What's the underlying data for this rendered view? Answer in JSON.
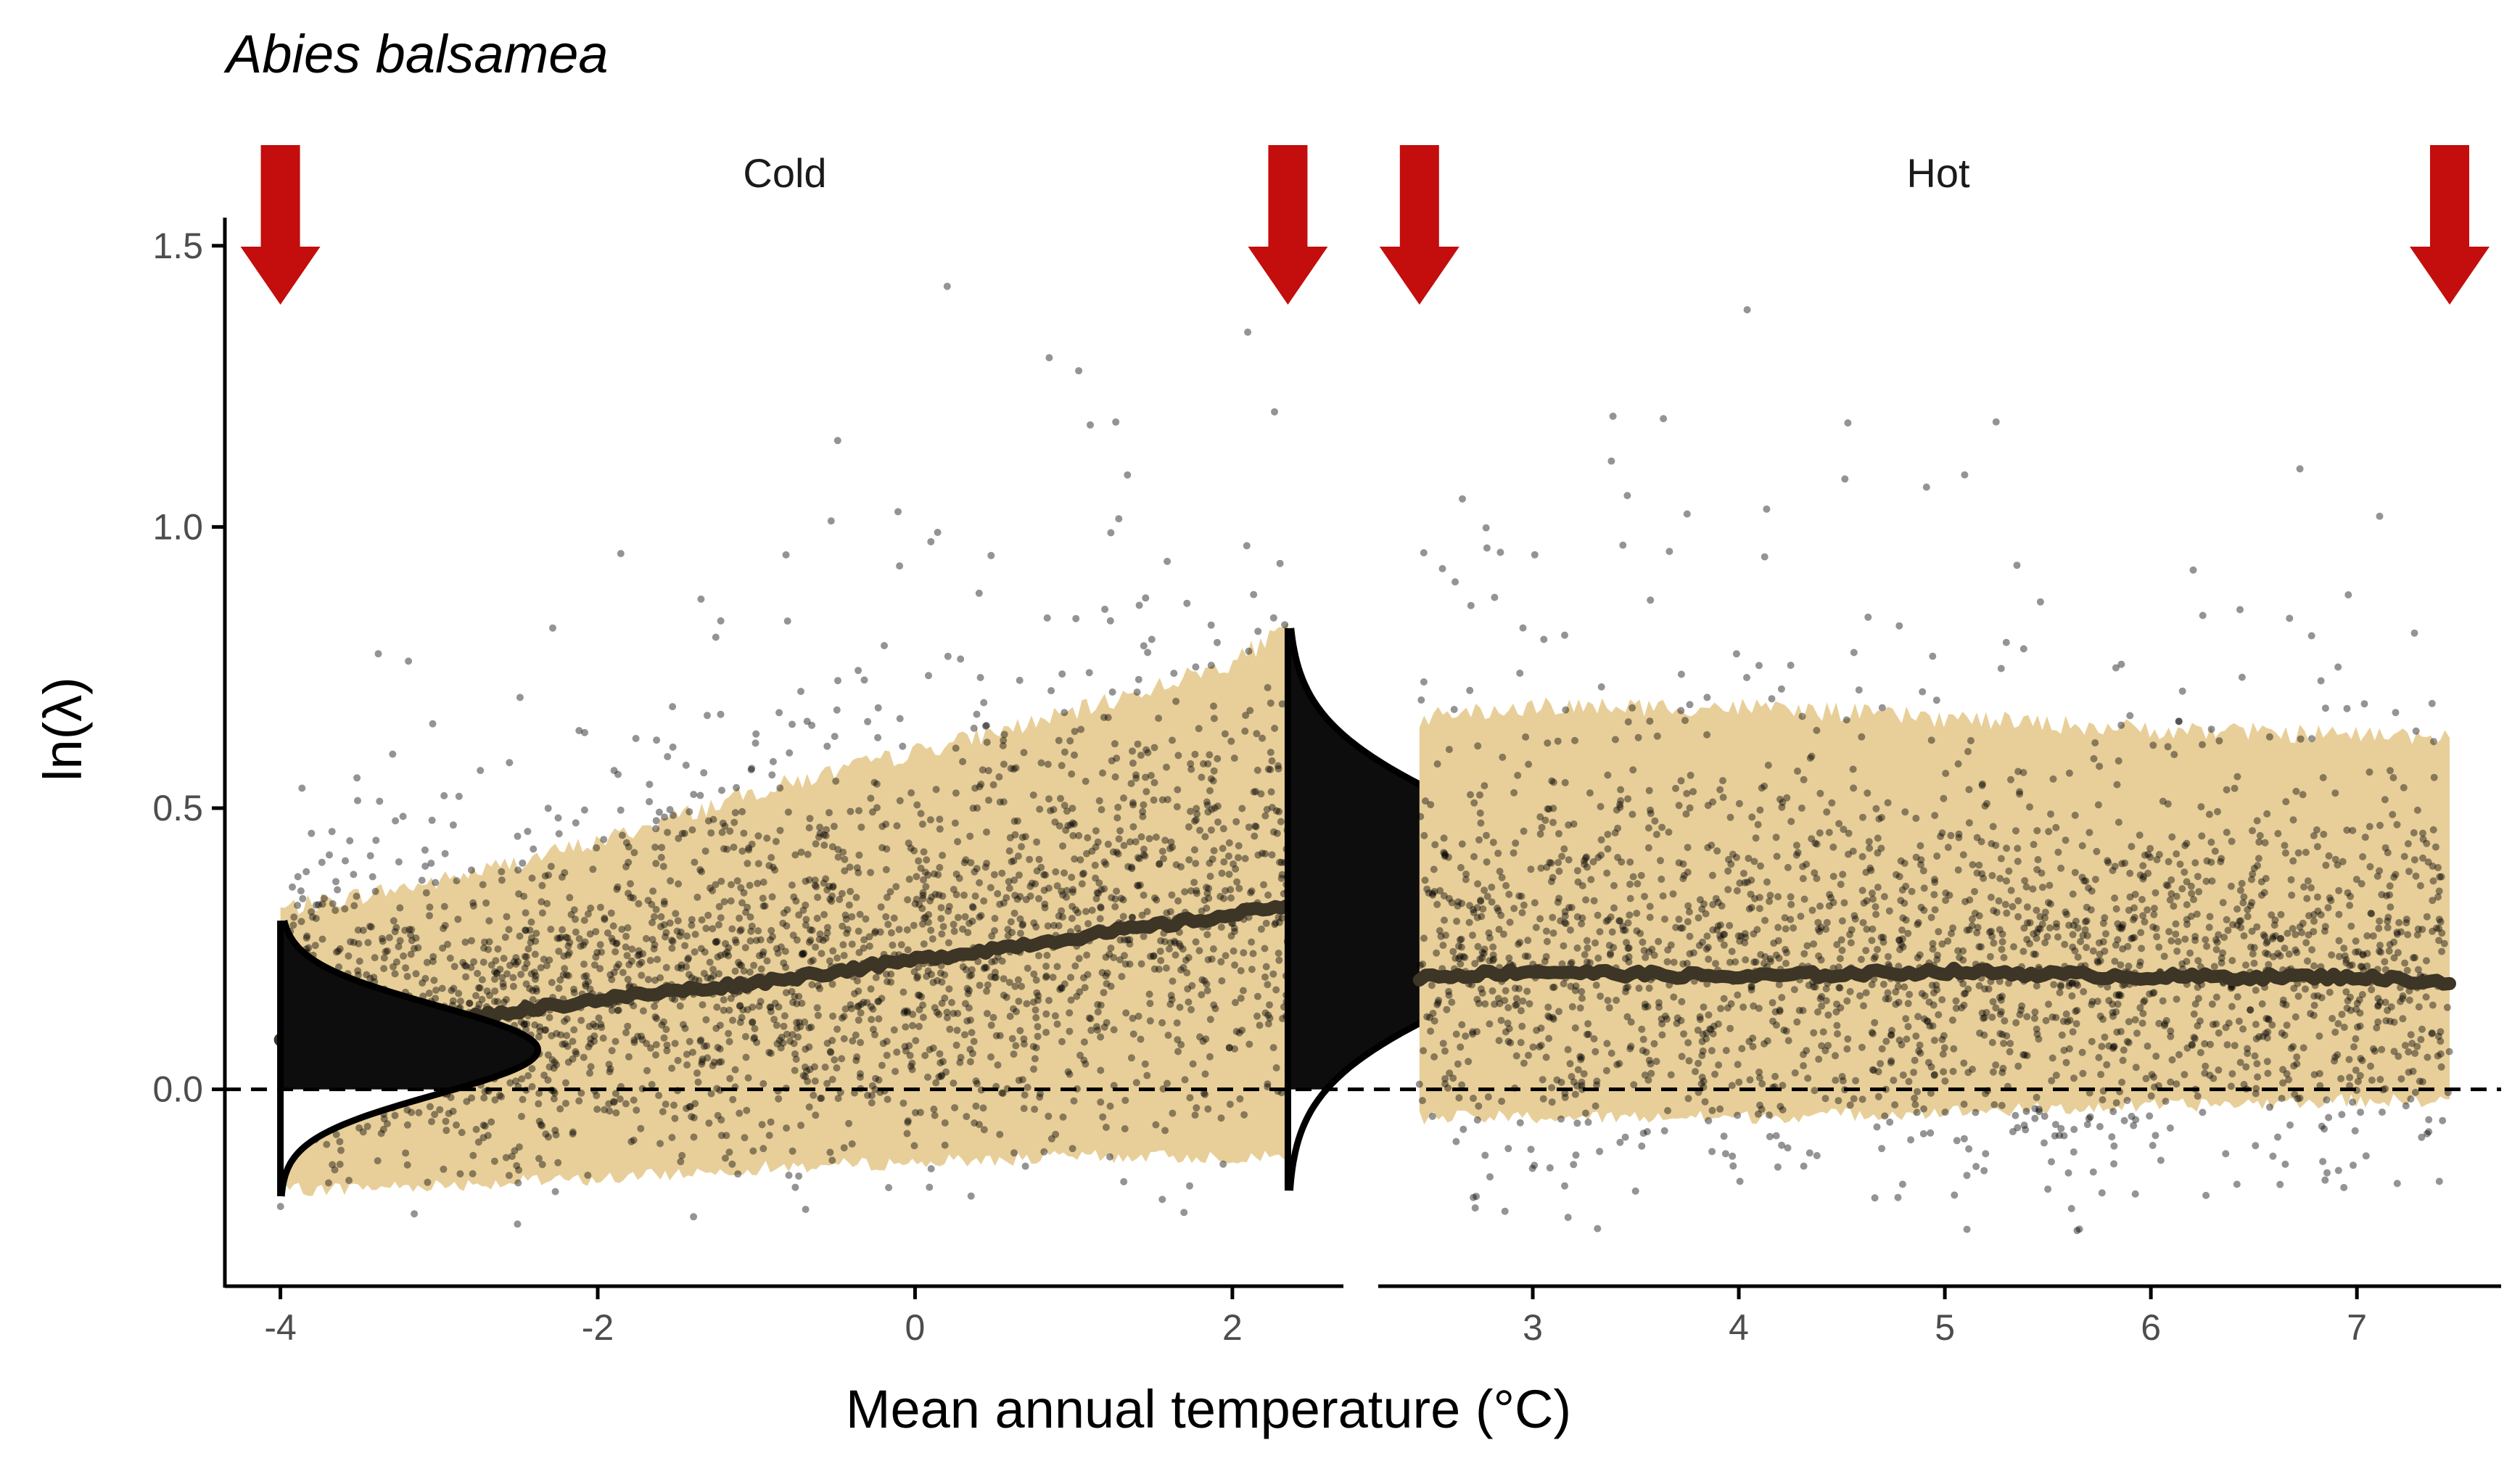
{
  "chart_data": {
    "type": "scatter",
    "title": "Abies balsamea",
    "xlabel": "Mean annual temperature (°C)",
    "ylabel": "ln(λ)",
    "ylim": [
      -0.35,
      1.55
    ],
    "y_ticks": [
      "1.5",
      "1.0",
      "0.5",
      "0.0"
    ],
    "y_tick_values": [
      1.5,
      1.0,
      0.5,
      0.0
    ],
    "reference_line_y": 0.0,
    "colors": {
      "points": "#000000",
      "band": "#e8cf99",
      "trend": "#3d3526",
      "density": "#0d0d0d",
      "arrows": "#c40d0d",
      "axis": "#000000"
    },
    "panels": [
      {
        "label": "Cold",
        "xlim": [
          -4.35,
          2.7
        ],
        "x_ticks": [
          "-4",
          "-2",
          "0",
          "2"
        ],
        "x_tick_values": [
          -4,
          -2,
          0,
          2
        ],
        "trend": {
          "x": [
            -4.0,
            -3.0,
            -2.0,
            -1.0,
            0.0,
            1.0,
            2.0,
            2.35
          ],
          "y": [
            0.09,
            0.12,
            0.16,
            0.19,
            0.23,
            0.27,
            0.31,
            0.33
          ]
        },
        "band": {
          "x": [
            -4.0,
            -3.0,
            -2.0,
            -1.0,
            0.0,
            1.0,
            2.0,
            2.35
          ],
          "lower": [
            -0.18,
            -0.17,
            -0.16,
            -0.14,
            -0.13,
            -0.12,
            -0.12,
            -0.12
          ],
          "upper": [
            0.32,
            0.37,
            0.44,
            0.53,
            0.6,
            0.67,
            0.76,
            0.82
          ]
        },
        "density_left": {
          "x": -4.0,
          "ymin": -0.19,
          "ymax": 0.3,
          "mode": 0.07
        },
        "density_right": {
          "x": 2.35,
          "ymin": -0.18,
          "ymax": 0.82,
          "mode": 0.33
        },
        "arrows_x": [
          -4.0,
          2.35
        ]
      },
      {
        "label": "Hot",
        "xlim": [
          2.25,
          7.7
        ],
        "x_ticks": [
          "3",
          "4",
          "5",
          "6",
          "7"
        ],
        "x_tick_values": [
          3,
          4,
          5,
          6,
          7
        ],
        "trend": {
          "x": [
            2.45,
            3.0,
            4.0,
            5.0,
            6.0,
            7.0,
            7.45
          ],
          "y": [
            0.2,
            0.21,
            0.2,
            0.21,
            0.2,
            0.2,
            0.19
          ]
        },
        "band": {
          "x": [
            2.45,
            3.0,
            4.0,
            5.0,
            6.0,
            7.0,
            7.45
          ],
          "lower": [
            -0.05,
            -0.05,
            -0.05,
            -0.04,
            -0.03,
            -0.02,
            -0.02
          ],
          "upper": [
            0.66,
            0.68,
            0.68,
            0.66,
            0.64,
            0.63,
            0.63
          ]
        },
        "arrows_x": [
          2.45,
          7.45
        ]
      }
    ]
  }
}
